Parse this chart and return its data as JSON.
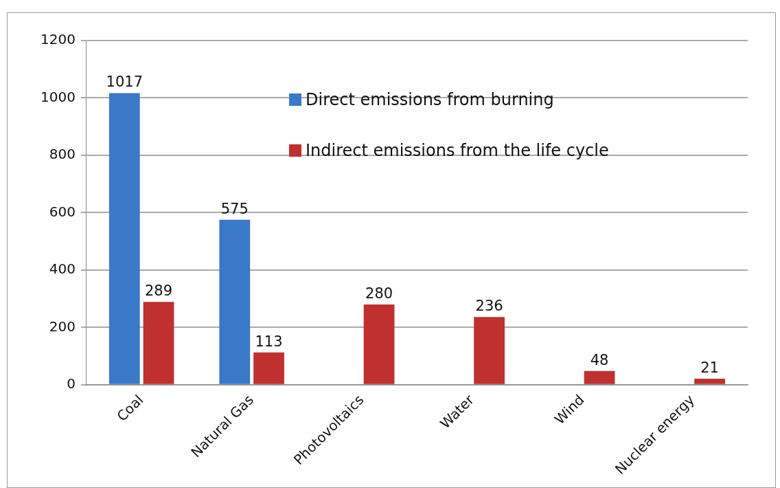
{
  "chart_data": {
    "type": "bar",
    "categories": [
      "Coal",
      "Natural Gas",
      "Photovoltaics",
      "Water",
      "Wind",
      "Nuclear energy"
    ],
    "series": [
      {
        "name": "Direct emissions from burning",
        "color": "#3a78c8",
        "values": [
          1017,
          575,
          null,
          null,
          null,
          null
        ]
      },
      {
        "name": "Indirect emissions from the life cycle",
        "color": "#c0302e",
        "values": [
          289,
          113,
          280,
          236,
          48,
          21
        ]
      }
    ],
    "ylim": [
      0,
      1200
    ],
    "yticks": [
      0,
      200,
      400,
      600,
      800,
      1000,
      1200
    ],
    "grid": "y",
    "legend": "top right",
    "data_labels": true
  }
}
